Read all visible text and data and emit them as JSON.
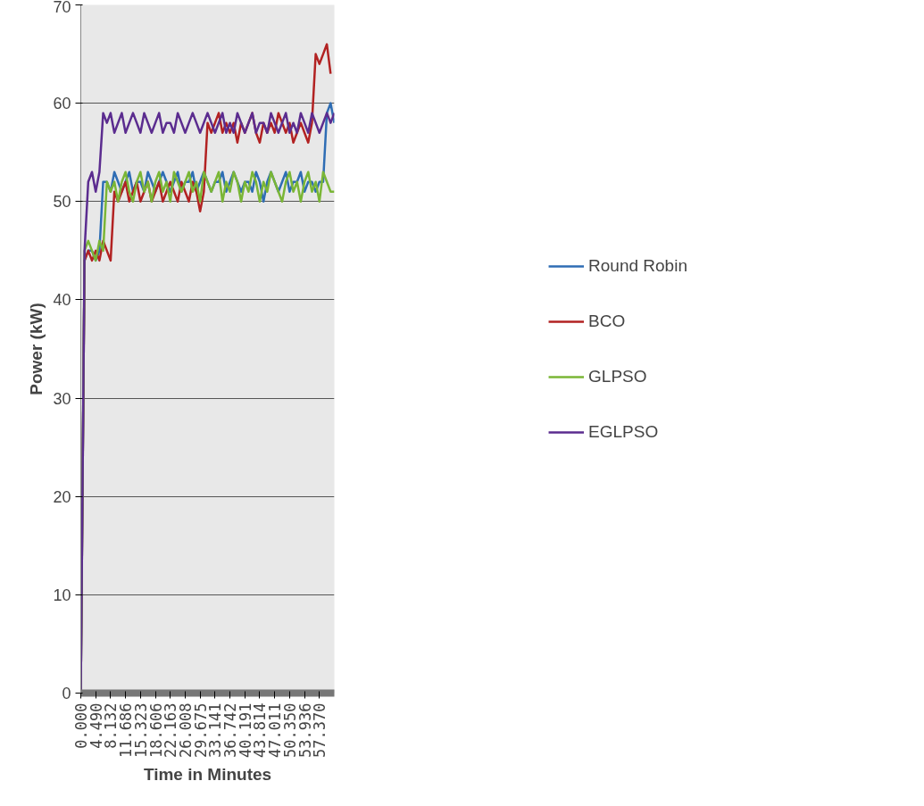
{
  "chart_data": {
    "type": "line",
    "xlabel": "Time in Minutes",
    "ylabel": "Power (kW)",
    "categories": [
      "0.000",
      null,
      null,
      null,
      "4.490",
      null,
      null,
      null,
      "8.132",
      null,
      null,
      null,
      "11.686",
      null,
      null,
      null,
      "15.323",
      null,
      null,
      null,
      "18.606",
      null,
      null,
      null,
      "22.163",
      null,
      null,
      null,
      "26.008",
      null,
      null,
      null,
      "29.675",
      null,
      null,
      null,
      "33.141",
      null,
      null,
      null,
      "36.742",
      null,
      null,
      null,
      "40.191",
      null,
      null,
      null,
      "43.814",
      null,
      null,
      null,
      "47.011",
      null,
      null,
      null,
      "50.350",
      null,
      null,
      null,
      "53.936",
      null,
      null,
      null,
      "57.370",
      null,
      null,
      null,
      null
    ],
    "series": [
      {
        "name": "Round Robin",
        "color": "#2e6db4",
        "values": [
          0,
          44,
          45,
          45,
          44,
          45,
          52,
          52,
          51,
          53,
          52,
          51,
          52,
          53,
          51,
          52,
          52,
          51,
          53,
          52,
          51,
          52,
          53,
          52,
          51,
          52,
          53,
          51,
          52,
          52,
          53,
          51,
          52,
          53,
          52,
          51,
          52,
          52,
          53,
          51,
          52,
          53,
          52,
          51,
          52,
          52,
          51,
          53,
          52,
          50,
          52,
          53,
          52,
          51,
          52,
          53,
          51,
          52,
          52,
          53,
          51,
          52,
          52,
          51,
          52,
          52,
          59,
          60,
          58
        ]
      },
      {
        "name": "BCO",
        "color": "#b22222",
        "values": [
          0,
          44,
          45,
          44,
          45,
          44,
          46,
          45,
          44,
          51,
          50,
          51,
          52,
          50,
          51,
          52,
          50,
          51,
          52,
          50,
          51,
          52,
          50,
          51,
          52,
          51,
          50,
          52,
          51,
          50,
          52,
          51,
          49,
          51,
          58,
          57,
          58,
          59,
          57,
          58,
          57,
          58,
          56,
          58,
          57,
          58,
          59,
          57,
          56,
          58,
          57,
          58,
          57,
          59,
          58,
          57,
          58,
          56,
          57,
          58,
          57,
          56,
          58,
          65,
          64,
          65,
          66,
          63,
          null
        ]
      },
      {
        "name": "GLPSO",
        "color": "#7ab636",
        "values": [
          0,
          45,
          46,
          45,
          44,
          46,
          45,
          52,
          51,
          52,
          50,
          52,
          53,
          51,
          50,
          52,
          53,
          51,
          52,
          50,
          52,
          53,
          51,
          52,
          50,
          53,
          52,
          51,
          52,
          53,
          51,
          52,
          50,
          53,
          52,
          51,
          52,
          53,
          50,
          52,
          51,
          53,
          52,
          50,
          52,
          51,
          53,
          52,
          50,
          52,
          51,
          53,
          52,
          51,
          50,
          52,
          53,
          51,
          52,
          50,
          52,
          53,
          51,
          52,
          50,
          53,
          52,
          51,
          51
        ]
      },
      {
        "name": "EGLPSO",
        "color": "#5b2c8f",
        "values": [
          0,
          45,
          52,
          53,
          51,
          53,
          59,
          58,
          59,
          57,
          58,
          59,
          57,
          58,
          59,
          58,
          57,
          59,
          58,
          57,
          58,
          59,
          57,
          58,
          58,
          57,
          59,
          58,
          57,
          58,
          59,
          58,
          57,
          58,
          59,
          58,
          57,
          58,
          59,
          57,
          58,
          57,
          59,
          58,
          57,
          58,
          59,
          57,
          58,
          58,
          57,
          59,
          58,
          57,
          58,
          59,
          57,
          58,
          57,
          59,
          58,
          57,
          59,
          58,
          57,
          58,
          59,
          58,
          59
        ]
      }
    ],
    "ylim": [
      0,
      70
    ],
    "yticks": [
      0,
      10,
      20,
      30,
      40,
      50,
      60,
      70
    ],
    "grid": "y",
    "legend": "right",
    "line_style": "solid",
    "marker": "none"
  }
}
